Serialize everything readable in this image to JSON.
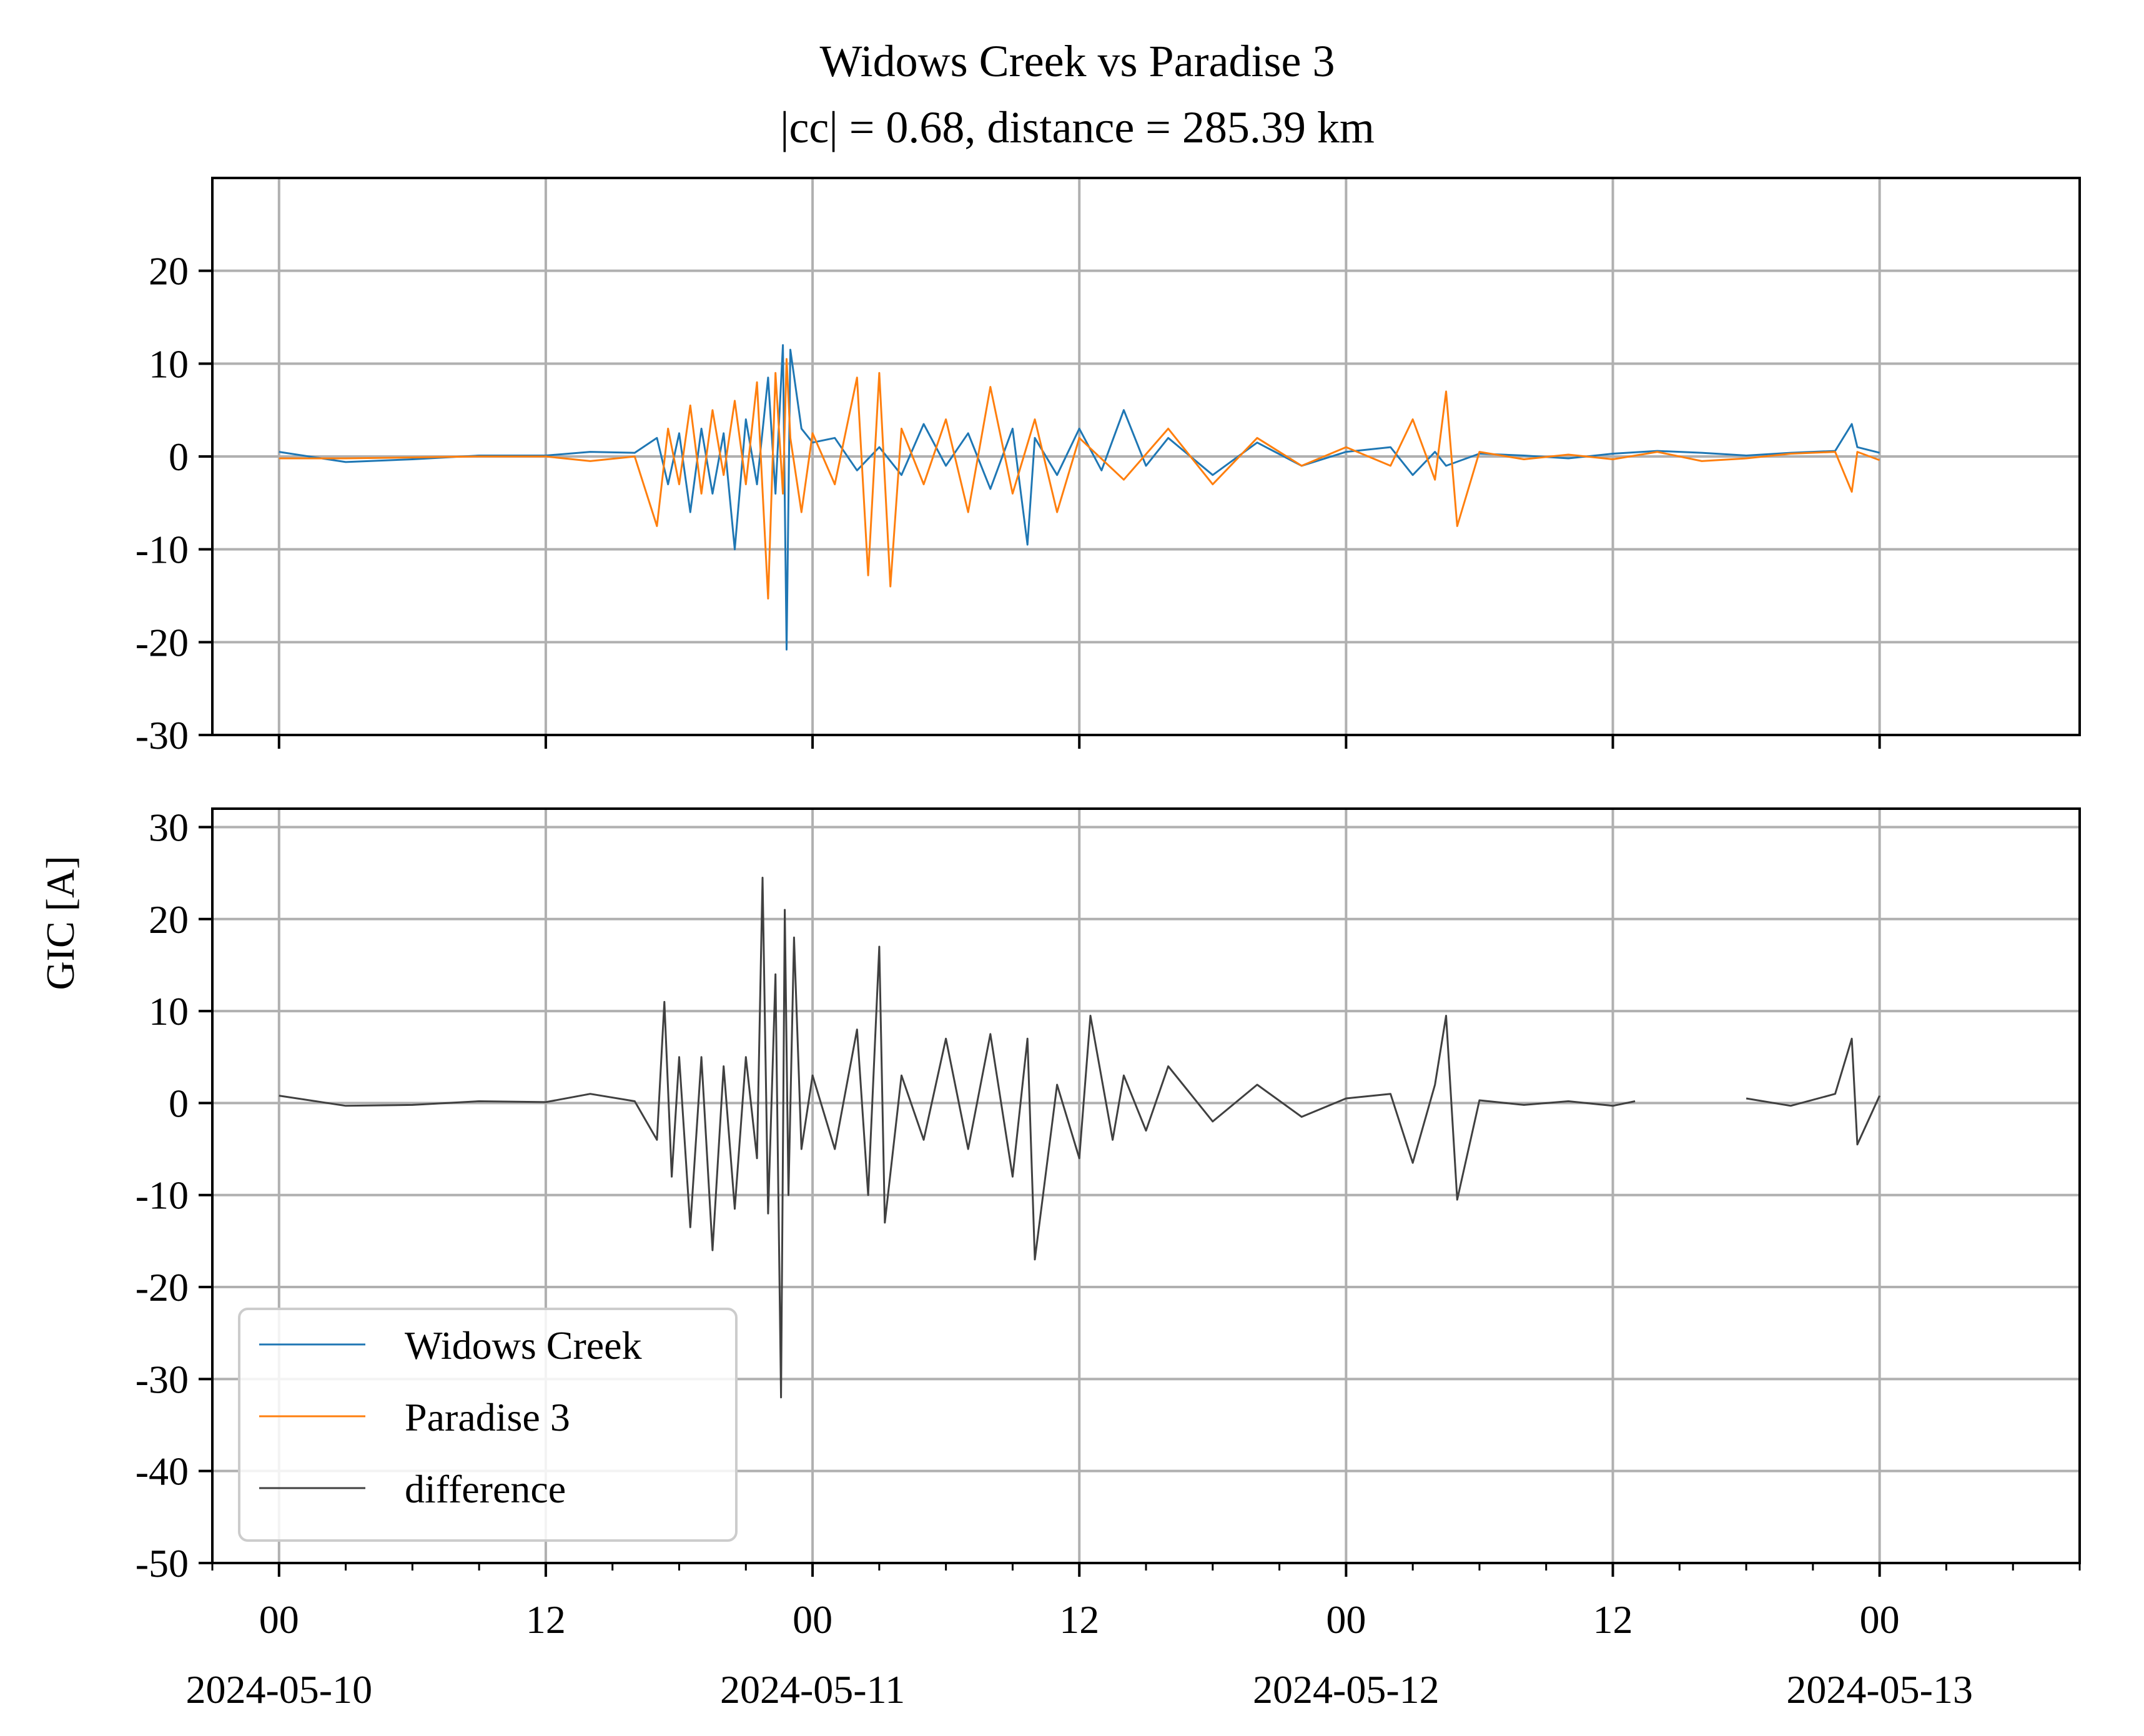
{
  "figure": {
    "title_line1": "Widows Creek vs Paradise 3",
    "title_line2": "|cc| = 0.68, distance = 285.39 km",
    "ylabel": "GIC [A]"
  },
  "colors": {
    "widows_creek": "#1f77b4",
    "paradise_3": "#ff7f0e",
    "difference": "#404040",
    "grid": "#b0b0b0"
  },
  "x_axis": {
    "xlim": [
      "2024-05-09T21:00",
      "2024-05-13T09:00"
    ],
    "major_ticks": [
      {
        "t": "2024-05-10T00:00",
        "hour": "00",
        "date": "2024-05-10"
      },
      {
        "t": "2024-05-10T12:00",
        "hour": "12",
        "date": ""
      },
      {
        "t": "2024-05-11T00:00",
        "hour": "00",
        "date": "2024-05-11"
      },
      {
        "t": "2024-05-11T12:00",
        "hour": "12",
        "date": ""
      },
      {
        "t": "2024-05-12T00:00",
        "hour": "00",
        "date": "2024-05-12"
      },
      {
        "t": "2024-05-12T12:00",
        "hour": "12",
        "date": ""
      },
      {
        "t": "2024-05-13T00:00",
        "hour": "00",
        "date": "2024-05-13"
      }
    ],
    "minor_tick_hours": 3
  },
  "chart_data": [
    {
      "type": "line",
      "panel": "top",
      "ylim": [
        -30,
        30
      ],
      "yticks": [
        20,
        10,
        0,
        -10,
        -20,
        -30
      ],
      "ytick_labels": [
        "20",
        "10",
        "0",
        "-10",
        "-20",
        "-30"
      ],
      "grid": true,
      "series": [
        {
          "name": "Widows Creek",
          "x": [
            "2024-05-10T00:00",
            "2024-05-10T03:00",
            "2024-05-10T06:00",
            "2024-05-10T09:00",
            "2024-05-10T12:00",
            "2024-05-10T14:00",
            "2024-05-10T16:00",
            "2024-05-10T17:00",
            "2024-05-10T17:30",
            "2024-05-10T18:00",
            "2024-05-10T18:30",
            "2024-05-10T19:00",
            "2024-05-10T19:30",
            "2024-05-10T20:00",
            "2024-05-10T20:30",
            "2024-05-10T21:00",
            "2024-05-10T21:30",
            "2024-05-10T22:00",
            "2024-05-10T22:20",
            "2024-05-10T22:40",
            "2024-05-10T22:50",
            "2024-05-10T23:00",
            "2024-05-10T23:30",
            "2024-05-11T00:00",
            "2024-05-11T01:00",
            "2024-05-11T02:00",
            "2024-05-11T03:00",
            "2024-05-11T04:00",
            "2024-05-11T05:00",
            "2024-05-11T06:00",
            "2024-05-11T07:00",
            "2024-05-11T08:00",
            "2024-05-11T09:00",
            "2024-05-11T09:40",
            "2024-05-11T10:00",
            "2024-05-11T11:00",
            "2024-05-11T12:00",
            "2024-05-11T13:00",
            "2024-05-11T14:00",
            "2024-05-11T15:00",
            "2024-05-11T16:00",
            "2024-05-11T18:00",
            "2024-05-11T20:00",
            "2024-05-11T22:00",
            "2024-05-12T00:00",
            "2024-05-12T02:00",
            "2024-05-12T03:00",
            "2024-05-12T04:00",
            "2024-05-12T04:30",
            "2024-05-12T06:00",
            "2024-05-12T08:00",
            "2024-05-12T10:00",
            "2024-05-12T12:00",
            "2024-05-12T14:00",
            "2024-05-12T16:00",
            "2024-05-12T18:00",
            "2024-05-12T20:00",
            "2024-05-12T22:00",
            "2024-05-12T22:45",
            "2024-05-12T23:00",
            "2024-05-13T00:00"
          ],
          "y": [
            0.5,
            -0.6,
            -0.3,
            0.1,
            0.1,
            0.5,
            0.4,
            2.0,
            -3.0,
            2.5,
            -6.0,
            3.0,
            -4.0,
            2.5,
            -10.0,
            4.0,
            -3.0,
            8.5,
            -4.0,
            12.0,
            -20.8,
            11.5,
            3.0,
            1.5,
            2.0,
            -1.5,
            1.0,
            -2.0,
            3.5,
            -1.0,
            2.5,
            -3.5,
            3.0,
            -9.5,
            2.0,
            -2.0,
            3.0,
            -1.5,
            5.0,
            -1.0,
            2.0,
            -2.0,
            1.5,
            -1.0,
            0.5,
            1.0,
            -2.0,
            0.5,
            -1.0,
            0.3,
            0.1,
            -0.2,
            0.3,
            0.6,
            0.4,
            0.1,
            0.4,
            0.6,
            3.5,
            1.0,
            0.4
          ]
        },
        {
          "name": "Paradise 3",
          "x": [
            "2024-05-10T00:00",
            "2024-05-10T03:00",
            "2024-05-10T06:00",
            "2024-05-10T09:00",
            "2024-05-10T12:00",
            "2024-05-10T14:00",
            "2024-05-10T16:00",
            "2024-05-10T17:00",
            "2024-05-10T17:30",
            "2024-05-10T18:00",
            "2024-05-10T18:30",
            "2024-05-10T19:00",
            "2024-05-10T19:30",
            "2024-05-10T20:00",
            "2024-05-10T20:30",
            "2024-05-10T21:00",
            "2024-05-10T21:30",
            "2024-05-10T22:00",
            "2024-05-10T22:20",
            "2024-05-10T22:40",
            "2024-05-10T22:50",
            "2024-05-10T23:00",
            "2024-05-10T23:30",
            "2024-05-11T00:00",
            "2024-05-11T01:00",
            "2024-05-11T02:00",
            "2024-05-11T02:30",
            "2024-05-11T03:00",
            "2024-05-11T03:30",
            "2024-05-11T04:00",
            "2024-05-11T05:00",
            "2024-05-11T06:00",
            "2024-05-11T07:00",
            "2024-05-11T08:00",
            "2024-05-11T09:00",
            "2024-05-11T10:00",
            "2024-05-11T11:00",
            "2024-05-11T12:00",
            "2024-05-11T14:00",
            "2024-05-11T16:00",
            "2024-05-11T18:00",
            "2024-05-11T20:00",
            "2024-05-11T22:00",
            "2024-05-12T00:00",
            "2024-05-12T02:00",
            "2024-05-12T03:00",
            "2024-05-12T04:00",
            "2024-05-12T04:30",
            "2024-05-12T05:00",
            "2024-05-12T06:00",
            "2024-05-12T08:00",
            "2024-05-12T10:00",
            "2024-05-12T12:00",
            "2024-05-12T14:00",
            "2024-05-12T16:00",
            "2024-05-12T18:00",
            "2024-05-12T20:00",
            "2024-05-12T22:00",
            "2024-05-12T22:45",
            "2024-05-12T23:00",
            "2024-05-13T00:00"
          ],
          "y": [
            -0.2,
            -0.2,
            -0.1,
            0.0,
            0.0,
            -0.5,
            0.0,
            -7.5,
            3.0,
            -3.0,
            5.5,
            -4.0,
            5.0,
            -2.0,
            6.0,
            -3.0,
            8.0,
            -15.3,
            9.0,
            -4.0,
            10.5,
            2.0,
            -6.0,
            2.5,
            -3.0,
            8.5,
            -12.8,
            9.0,
            -14.0,
            3.0,
            -3.0,
            4.0,
            -6.0,
            7.5,
            -4.0,
            4.0,
            -6.0,
            2.0,
            -2.5,
            3.0,
            -3.0,
            2.0,
            -1.0,
            1.0,
            -1.0,
            4.0,
            -2.5,
            7.0,
            -7.5,
            0.5,
            -0.3,
            0.2,
            -0.3,
            0.5,
            -0.5,
            -0.2,
            0.3,
            0.5,
            -3.8,
            0.5,
            -0.4
          ]
        }
      ]
    },
    {
      "type": "line",
      "panel": "bottom",
      "ylim": [
        -50,
        32
      ],
      "yticks": [
        30,
        20,
        10,
        0,
        -10,
        -20,
        -30,
        -40,
        -50
      ],
      "ytick_labels": [
        "30",
        "20",
        "10",
        "0",
        "-10",
        "-20",
        "-30",
        "-40",
        "-50"
      ],
      "grid": true,
      "legend": {
        "placement": "lower-left"
      },
      "series": [
        {
          "name": "difference",
          "x": [
            "2024-05-10T00:00",
            "2024-05-10T03:00",
            "2024-05-10T06:00",
            "2024-05-10T09:00",
            "2024-05-10T12:00",
            "2024-05-10T14:00",
            "2024-05-10T16:00",
            "2024-05-10T17:00",
            "2024-05-10T17:20",
            "2024-05-10T17:40",
            "2024-05-10T18:00",
            "2024-05-10T18:30",
            "2024-05-10T19:00",
            "2024-05-10T19:30",
            "2024-05-10T20:00",
            "2024-05-10T20:30",
            "2024-05-10T21:00",
            "2024-05-10T21:30",
            "2024-05-10T21:45",
            "2024-05-10T22:00",
            "2024-05-10T22:20",
            "2024-05-10T22:35",
            "2024-05-10T22:45",
            "2024-05-10T22:55",
            "2024-05-10T23:10",
            "2024-05-10T23:30",
            "2024-05-11T00:00",
            "2024-05-11T01:00",
            "2024-05-11T02:00",
            "2024-05-11T02:30",
            "2024-05-11T03:00",
            "2024-05-11T03:15",
            "2024-05-11T04:00",
            "2024-05-11T05:00",
            "2024-05-11T06:00",
            "2024-05-11T07:00",
            "2024-05-11T08:00",
            "2024-05-11T09:00",
            "2024-05-11T09:40",
            "2024-05-11T10:00",
            "2024-05-11T11:00",
            "2024-05-11T12:00",
            "2024-05-11T12:30",
            "2024-05-11T13:30",
            "2024-05-11T14:00",
            "2024-05-11T15:00",
            "2024-05-11T16:00",
            "2024-05-11T18:00",
            "2024-05-11T20:00",
            "2024-05-11T22:00",
            "2024-05-12T00:00",
            "2024-05-12T02:00",
            "2024-05-12T03:00",
            "2024-05-12T04:00",
            "2024-05-12T04:30",
            "2024-05-12T05:00",
            "2024-05-12T06:00",
            "2024-05-12T08:00",
            "2024-05-12T10:00",
            "2024-05-12T12:00",
            "2024-05-12T13:00",
            "2024-05-12T15:00",
            "2024-05-12T18:00",
            "2024-05-12T20:00",
            "2024-05-12T22:00",
            "2024-05-12T22:45",
            "2024-05-12T23:00",
            "2024-05-13T00:00"
          ],
          "y": [
            0.8,
            -0.3,
            -0.2,
            0.2,
            0.1,
            1.0,
            0.2,
            -4.0,
            11.0,
            -8.0,
            5.0,
            -13.5,
            5.0,
            -16.0,
            4.0,
            -11.5,
            5.0,
            -6.0,
            24.5,
            -12.0,
            14.0,
            -32.0,
            21.0,
            -10.0,
            18.0,
            -5.0,
            3.0,
            -5.0,
            8.0,
            -10.0,
            17.0,
            -13.0,
            3.0,
            -4.0,
            7.0,
            -5.0,
            7.5,
            -8.0,
            7.0,
            -17.0,
            2.0,
            -6.0,
            9.5,
            -4.0,
            3.0,
            -3.0,
            4.0,
            -2.0,
            2.0,
            -1.5,
            0.5,
            1.0,
            -6.5,
            2.0,
            9.5,
            -10.5,
            0.3,
            -0.2,
            0.2,
            -0.3,
            0.2,
            null,
            0.5,
            -0.3,
            1.0,
            7.0,
            -4.5,
            0.8
          ]
        }
      ]
    }
  ],
  "legend": {
    "items": [
      {
        "label": "Widows Creek",
        "color_key": "widows_creek"
      },
      {
        "label": "Paradise 3",
        "color_key": "paradise_3"
      },
      {
        "label": "difference",
        "color_key": "difference"
      }
    ]
  }
}
